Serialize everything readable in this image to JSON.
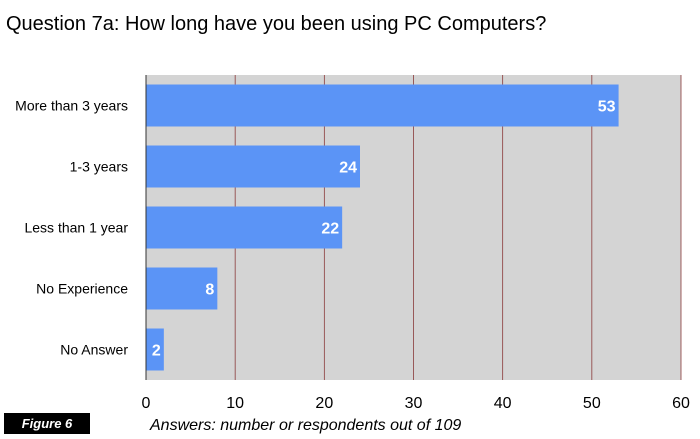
{
  "figure": {
    "label": "Figure 6"
  },
  "colors": {
    "bar": "#5b94f6",
    "plot_background": "#d4d4d4",
    "gridline": "#8a3a3a",
    "badge_background": "#000000"
  },
  "chart_data": {
    "type": "bar",
    "orientation": "horizontal",
    "title": "Question 7a: How long have you been using PC Computers?",
    "xlabel": "Answers: number or respondents out of 109",
    "ylabel": "",
    "categories": [
      "More than 3 years",
      "1-3 years",
      "Less than 1 year",
      "No Experience",
      "No Answer"
    ],
    "values": [
      53,
      24,
      22,
      8,
      2
    ],
    "data_labels": [
      "53",
      "24",
      "22",
      "8",
      "2"
    ],
    "xlim": [
      0,
      60
    ],
    "x_ticks": [
      0,
      10,
      20,
      30,
      40,
      50,
      60
    ],
    "x_tick_labels": [
      "0",
      "10",
      "20",
      "30",
      "40",
      "50",
      "60"
    ],
    "grid": true,
    "legend": "none"
  }
}
